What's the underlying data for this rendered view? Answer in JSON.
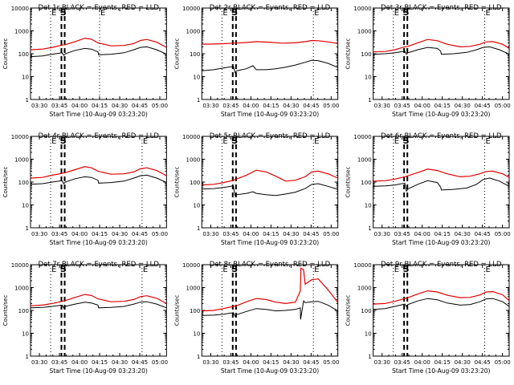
{
  "figure": {
    "title_suffix": "BLACK = Events, RED = LLD",
    "xlabel": "Start Time (10-Aug-09 03:23:20)",
    "ylabel": "Counts/sec",
    "xticks": [
      "03:30",
      "03:45",
      "04:00",
      "04:15",
      "04:30",
      "04:45",
      "05:00"
    ],
    "yticks": [
      "1",
      "10",
      "100",
      "1000",
      "10000"
    ],
    "marker_E": "E",
    "marker_S": "S"
  },
  "chart_data": [
    {
      "type": "line",
      "title": "Det 1r BLACK = Events, RED = LLD",
      "xlabel": "Start Time (10-Aug-09 03:23:20)",
      "ylabel": "Counts/sec",
      "xlim_min": [
        23.33,
        65
      ],
      "ylim": [
        1,
        10000
      ],
      "yscale": "log",
      "markers": {
        "E": [
          29.5,
          44.5
        ],
        "S": [
          33.4
        ],
        "dashed": [
          32.8,
          33.8
        ]
      },
      "series": [
        {
          "name": "Events",
          "color": "black",
          "x": [
            23.4,
            27,
            30,
            33,
            33.5,
            34,
            37,
            40,
            42,
            44,
            44.2,
            48,
            52,
            55,
            57,
            59,
            62,
            65
          ],
          "y": [
            75,
            80,
            95,
            110,
            85,
            100,
            140,
            170,
            160,
            120,
            90,
            95,
            110,
            150,
            190,
            200,
            150,
            95
          ]
        },
        {
          "name": "LLD",
          "color": "red",
          "x": [
            23.4,
            27,
            30,
            33,
            34,
            37,
            40,
            42,
            44,
            48,
            52,
            55,
            57,
            59,
            62,
            65
          ],
          "y": [
            150,
            160,
            190,
            240,
            250,
            340,
            480,
            430,
            300,
            220,
            230,
            280,
            380,
            420,
            320,
            190
          ]
        }
      ]
    },
    {
      "type": "line",
      "title": "Det 2r BLACK = Events, RED = LLD",
      "xlabel": "Start Time (10-Aug-09 03:23:20)",
      "ylabel": "Counts/sec",
      "xlim_min": [
        23.33,
        65
      ],
      "ylim": [
        1,
        10000
      ],
      "yscale": "log",
      "markers": {
        "E": [
          29.5,
          57.5
        ],
        "S": [
          33.4
        ],
        "dashed": [
          32.8,
          33.8
        ]
      },
      "series": [
        {
          "name": "Events",
          "color": "black",
          "x": [
            23.4,
            27,
            30,
            33,
            33.5,
            34,
            37,
            39,
            40,
            43,
            46,
            49,
            52,
            55,
            57,
            59,
            62,
            65
          ],
          "y": [
            18,
            20,
            24,
            28,
            15,
            18,
            22,
            30,
            20,
            20,
            22,
            26,
            32,
            42,
            52,
            50,
            38,
            25
          ]
        },
        {
          "name": "LLD",
          "color": "red",
          "x": [
            23.4,
            27,
            30,
            33,
            37,
            40,
            44,
            48,
            52,
            55,
            57,
            59,
            62,
            65
          ],
          "y": [
            260,
            265,
            275,
            290,
            310,
            340,
            320,
            290,
            300,
            340,
            380,
            370,
            330,
            280
          ]
        }
      ]
    },
    {
      "type": "line",
      "title": "Det 3r BLACK = Events, RED = LLD",
      "xlabel": "Start Time (10-Aug-09 03:23:20)",
      "ylabel": "Counts/sec",
      "xlim_min": [
        23.33,
        65
      ],
      "ylim": [
        1,
        10000
      ],
      "yscale": "log",
      "markers": {
        "E": [
          29.5,
          57.5
        ],
        "S": [
          33.4
        ],
        "dashed": [
          32.8,
          33.8
        ]
      },
      "series": [
        {
          "name": "Events",
          "color": "black",
          "x": [
            23.4,
            27,
            30,
            33,
            33.5,
            34,
            37,
            40,
            43,
            44,
            44.2,
            48,
            52,
            55,
            57,
            59,
            62,
            65
          ],
          "y": [
            95,
            100,
            110,
            130,
            95,
            110,
            150,
            190,
            170,
            130,
            95,
            100,
            115,
            150,
            190,
            200,
            150,
            95
          ]
        },
        {
          "name": "LLD",
          "color": "red",
          "x": [
            23.4,
            27,
            30,
            33,
            34,
            37,
            40,
            43,
            46,
            50,
            53,
            56,
            58,
            60,
            63,
            65
          ],
          "y": [
            120,
            125,
            150,
            200,
            210,
            300,
            420,
            370,
            260,
            200,
            210,
            260,
            330,
            340,
            260,
            170
          ]
        }
      ]
    },
    {
      "type": "line",
      "title": "Det 4r BLACK = Events, RED = LLD",
      "xlabel": "Start Time (10-Aug-09 03:23:20)",
      "ylabel": "Counts/sec",
      "xlim_min": [
        23.33,
        65
      ],
      "ylim": [
        1,
        10000
      ],
      "yscale": "log",
      "markers": {
        "E": [
          29.5,
          57.5
        ],
        "S": [
          33.4
        ],
        "dashed": [
          32.8,
          33.8
        ]
      },
      "series": [
        {
          "name": "Events",
          "color": "black",
          "x": [
            23.4,
            27,
            30,
            33,
            33.5,
            34,
            37,
            40,
            42,
            44,
            44.2,
            48,
            52,
            55,
            57,
            59,
            62,
            65
          ],
          "y": [
            80,
            85,
            100,
            115,
            85,
            100,
            140,
            170,
            160,
            120,
            90,
            95,
            110,
            150,
            190,
            200,
            150,
            95
          ]
        },
        {
          "name": "LLD",
          "color": "red",
          "x": [
            23.4,
            27,
            30,
            33,
            34,
            37,
            40,
            42,
            44,
            48,
            52,
            55,
            57,
            59,
            62,
            65
          ],
          "y": [
            150,
            160,
            200,
            240,
            260,
            350,
            470,
            420,
            300,
            220,
            230,
            280,
            380,
            420,
            320,
            190
          ]
        }
      ]
    },
    {
      "type": "line",
      "title": "Det 5r BLACK = Events, RED = LLD",
      "xlabel": "Start Time (10-Aug-09 03:23:20)",
      "ylabel": "Counts/sec",
      "xlim_min": [
        23.33,
        65
      ],
      "ylim": [
        1,
        10000
      ],
      "yscale": "log",
      "markers": {
        "E": [
          29.5,
          57.5
        ],
        "S": [
          33.4
        ],
        "dashed": [
          32.8,
          33.8
        ]
      },
      "series": [
        {
          "name": "Events",
          "color": "black",
          "x": [
            23.4,
            27,
            30,
            33,
            33.5,
            34,
            37,
            39,
            40,
            43,
            46,
            49,
            52,
            55,
            57,
            59,
            62,
            65
          ],
          "y": [
            50,
            52,
            58,
            68,
            25,
            28,
            32,
            38,
            32,
            28,
            26,
            30,
            36,
            52,
            80,
            85,
            65,
            48
          ]
        },
        {
          "name": "LLD",
          "color": "red",
          "x": [
            23.4,
            27,
            30,
            33,
            37,
            40,
            43,
            46,
            49,
            52,
            55,
            57,
            59,
            62,
            65
          ],
          "y": [
            75,
            80,
            95,
            120,
            200,
            330,
            280,
            180,
            110,
            120,
            170,
            280,
            300,
            230,
            150
          ]
        }
      ]
    },
    {
      "type": "line",
      "title": "Det 6r BLACK = Events, RED = LLD",
      "xlabel": "Start Time (10-Aug-09 03:23:20)",
      "ylabel": "Counts/sec",
      "xlim_min": [
        23.33,
        65
      ],
      "ylim": [
        1,
        10000
      ],
      "yscale": "log",
      "markers": {
        "E": [
          29.5,
          57.5
        ],
        "S": [
          33.4
        ],
        "dashed": [
          32.8,
          33.8
        ]
      },
      "series": [
        {
          "name": "Events",
          "color": "black",
          "x": [
            23.4,
            27,
            30,
            33,
            33.5,
            34,
            37,
            40,
            43,
            44,
            44.2,
            48,
            52,
            55,
            57,
            59,
            62,
            65
          ],
          "y": [
            65,
            68,
            75,
            90,
            40,
            50,
            80,
            115,
            95,
            60,
            45,
            48,
            55,
            80,
            130,
            150,
            110,
            65
          ]
        },
        {
          "name": "LLD",
          "color": "red",
          "x": [
            23.4,
            27,
            30,
            33,
            34,
            37,
            40,
            43,
            46,
            50,
            53,
            56,
            58,
            60,
            63,
            65
          ],
          "y": [
            110,
            115,
            135,
            170,
            190,
            260,
            370,
            320,
            230,
            170,
            180,
            230,
            290,
            300,
            230,
            160
          ]
        }
      ]
    },
    {
      "type": "line",
      "title": "Det 7r BLACK = Events, RED = LLD",
      "xlabel": "Start Time (10-Aug-09 03:23:20)",
      "ylabel": "Counts/sec",
      "xlim_min": [
        23.33,
        65
      ],
      "ylim": [
        1,
        10000
      ],
      "yscale": "log",
      "markers": {
        "E": [
          29.5,
          57.5
        ],
        "S": [
          33.4
        ],
        "dashed": [
          32.8,
          33.8
        ]
      },
      "series": [
        {
          "name": "Events",
          "color": "black",
          "x": [
            23.4,
            27,
            30,
            33,
            33.5,
            34,
            37,
            40,
            42,
            44,
            44.2,
            48,
            52,
            55,
            57,
            59,
            62,
            65
          ],
          "y": [
            130,
            135,
            150,
            170,
            130,
            150,
            190,
            230,
            210,
            170,
            130,
            135,
            150,
            190,
            230,
            240,
            190,
            130
          ]
        },
        {
          "name": "LLD",
          "color": "red",
          "x": [
            23.4,
            27,
            30,
            33,
            34,
            37,
            40,
            42,
            44,
            48,
            52,
            55,
            57,
            59,
            62,
            65
          ],
          "y": [
            160,
            170,
            200,
            250,
            270,
            370,
            500,
            450,
            320,
            240,
            250,
            300,
            400,
            440,
            340,
            200
          ]
        }
      ]
    },
    {
      "type": "line",
      "title": "Det 8r BLACK = Events, RED = LLD",
      "xlabel": "Start Time (10-Aug-09 03:23:20)",
      "ylabel": "Counts/sec",
      "xlim_min": [
        23.33,
        65
      ],
      "ylim": [
        1,
        10000
      ],
      "yscale": "log",
      "markers": {
        "E": [
          29.5,
          57.5
        ],
        "S": [
          33.4
        ],
        "dashed": [
          32.8,
          33.8
        ]
      },
      "series": [
        {
          "name": "Events",
          "color": "black",
          "x": [
            23.4,
            27,
            30,
            33,
            33.5,
            34,
            37,
            40,
            43,
            46,
            49,
            52,
            53.5,
            53.6,
            54.5,
            55,
            57,
            59,
            62,
            65
          ],
          "y": [
            60,
            62,
            68,
            80,
            55,
            65,
            90,
            120,
            110,
            95,
            100,
            110,
            130,
            40,
            260,
            220,
            240,
            250,
            170,
            95
          ]
        },
        {
          "name": "LLD",
          "color": "red",
          "x": [
            23.4,
            27,
            30,
            33,
            34,
            37,
            40,
            43,
            46,
            49,
            52,
            53.5,
            53.7,
            54.5,
            55,
            57,
            59,
            62,
            65
          ],
          "y": [
            95,
            100,
            120,
            150,
            160,
            240,
            330,
            300,
            230,
            200,
            230,
            700,
            7000,
            6000,
            1400,
            2200,
            2400,
            800,
            220
          ]
        }
      ]
    },
    {
      "type": "line",
      "title": "Det 9r BLACK = Events, RED = LLD",
      "xlabel": "Start Time (10-Aug-09 03:23:20)",
      "ylabel": "Counts/sec",
      "xlim_min": [
        23.33,
        65
      ],
      "ylim": [
        1,
        10000
      ],
      "yscale": "log",
      "markers": {
        "E": [
          29.5,
          57.5
        ],
        "S": [
          33.4
        ],
        "dashed": [
          32.8,
          33.8
        ]
      },
      "series": [
        {
          "name": "Events",
          "color": "black",
          "x": [
            23.4,
            27,
            30,
            33,
            33.5,
            34,
            37,
            40,
            43,
            46,
            50,
            53,
            56,
            58,
            60,
            63,
            65
          ],
          "y": [
            110,
            120,
            150,
            190,
            150,
            180,
            260,
            330,
            290,
            210,
            170,
            180,
            240,
            320,
            330,
            240,
            150
          ]
        },
        {
          "name": "LLD",
          "color": "red",
          "x": [
            23.4,
            27,
            30,
            33,
            34,
            37,
            40,
            43,
            46,
            50,
            53,
            56,
            58,
            60,
            63,
            65
          ],
          "y": [
            190,
            200,
            250,
            330,
            360,
            520,
            720,
            640,
            460,
            360,
            370,
            470,
            640,
            660,
            480,
            270
          ]
        }
      ]
    }
  ]
}
